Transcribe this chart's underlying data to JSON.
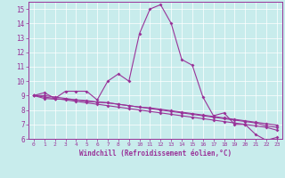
{
  "xlabel": "Windchill (Refroidissement éolien,°C)",
  "bg_color": "#c8ecec",
  "line_color": "#993399",
  "grid_color": "#ffffff",
  "xlim": [
    -0.5,
    23.5
  ],
  "ylim": [
    6,
    15.5
  ],
  "xticks": [
    0,
    1,
    2,
    3,
    4,
    5,
    6,
    7,
    8,
    9,
    10,
    11,
    12,
    13,
    14,
    15,
    16,
    17,
    18,
    19,
    20,
    21,
    22,
    23
  ],
  "yticks": [
    6,
    7,
    8,
    9,
    10,
    11,
    12,
    13,
    14,
    15
  ],
  "line1": [
    9.0,
    9.2,
    8.8,
    9.3,
    9.3,
    9.3,
    8.7,
    10.0,
    10.5,
    10.0,
    13.3,
    15.0,
    15.3,
    14.0,
    11.5,
    11.1,
    8.9,
    7.6,
    7.8,
    7.0,
    7.0,
    6.3,
    5.9,
    6.1
  ],
  "line2": [
    9.0,
    8.8,
    8.75,
    8.75,
    8.7,
    8.65,
    8.55,
    8.5,
    8.4,
    8.3,
    8.2,
    8.1,
    8.0,
    7.9,
    7.8,
    7.7,
    7.6,
    7.5,
    7.4,
    7.3,
    7.2,
    7.1,
    6.9,
    6.8
  ],
  "line3": [
    9.0,
    8.9,
    8.8,
    8.7,
    8.6,
    8.5,
    8.4,
    8.3,
    8.2,
    8.1,
    8.0,
    7.9,
    7.8,
    7.7,
    7.6,
    7.5,
    7.4,
    7.3,
    7.2,
    7.1,
    7.0,
    6.9,
    6.8,
    6.6
  ],
  "line4": [
    9.0,
    9.0,
    8.9,
    8.8,
    8.7,
    8.6,
    8.55,
    8.5,
    8.4,
    8.3,
    8.2,
    8.15,
    8.05,
    7.95,
    7.85,
    7.75,
    7.65,
    7.55,
    7.45,
    7.35,
    7.25,
    7.15,
    7.05,
    6.95
  ]
}
